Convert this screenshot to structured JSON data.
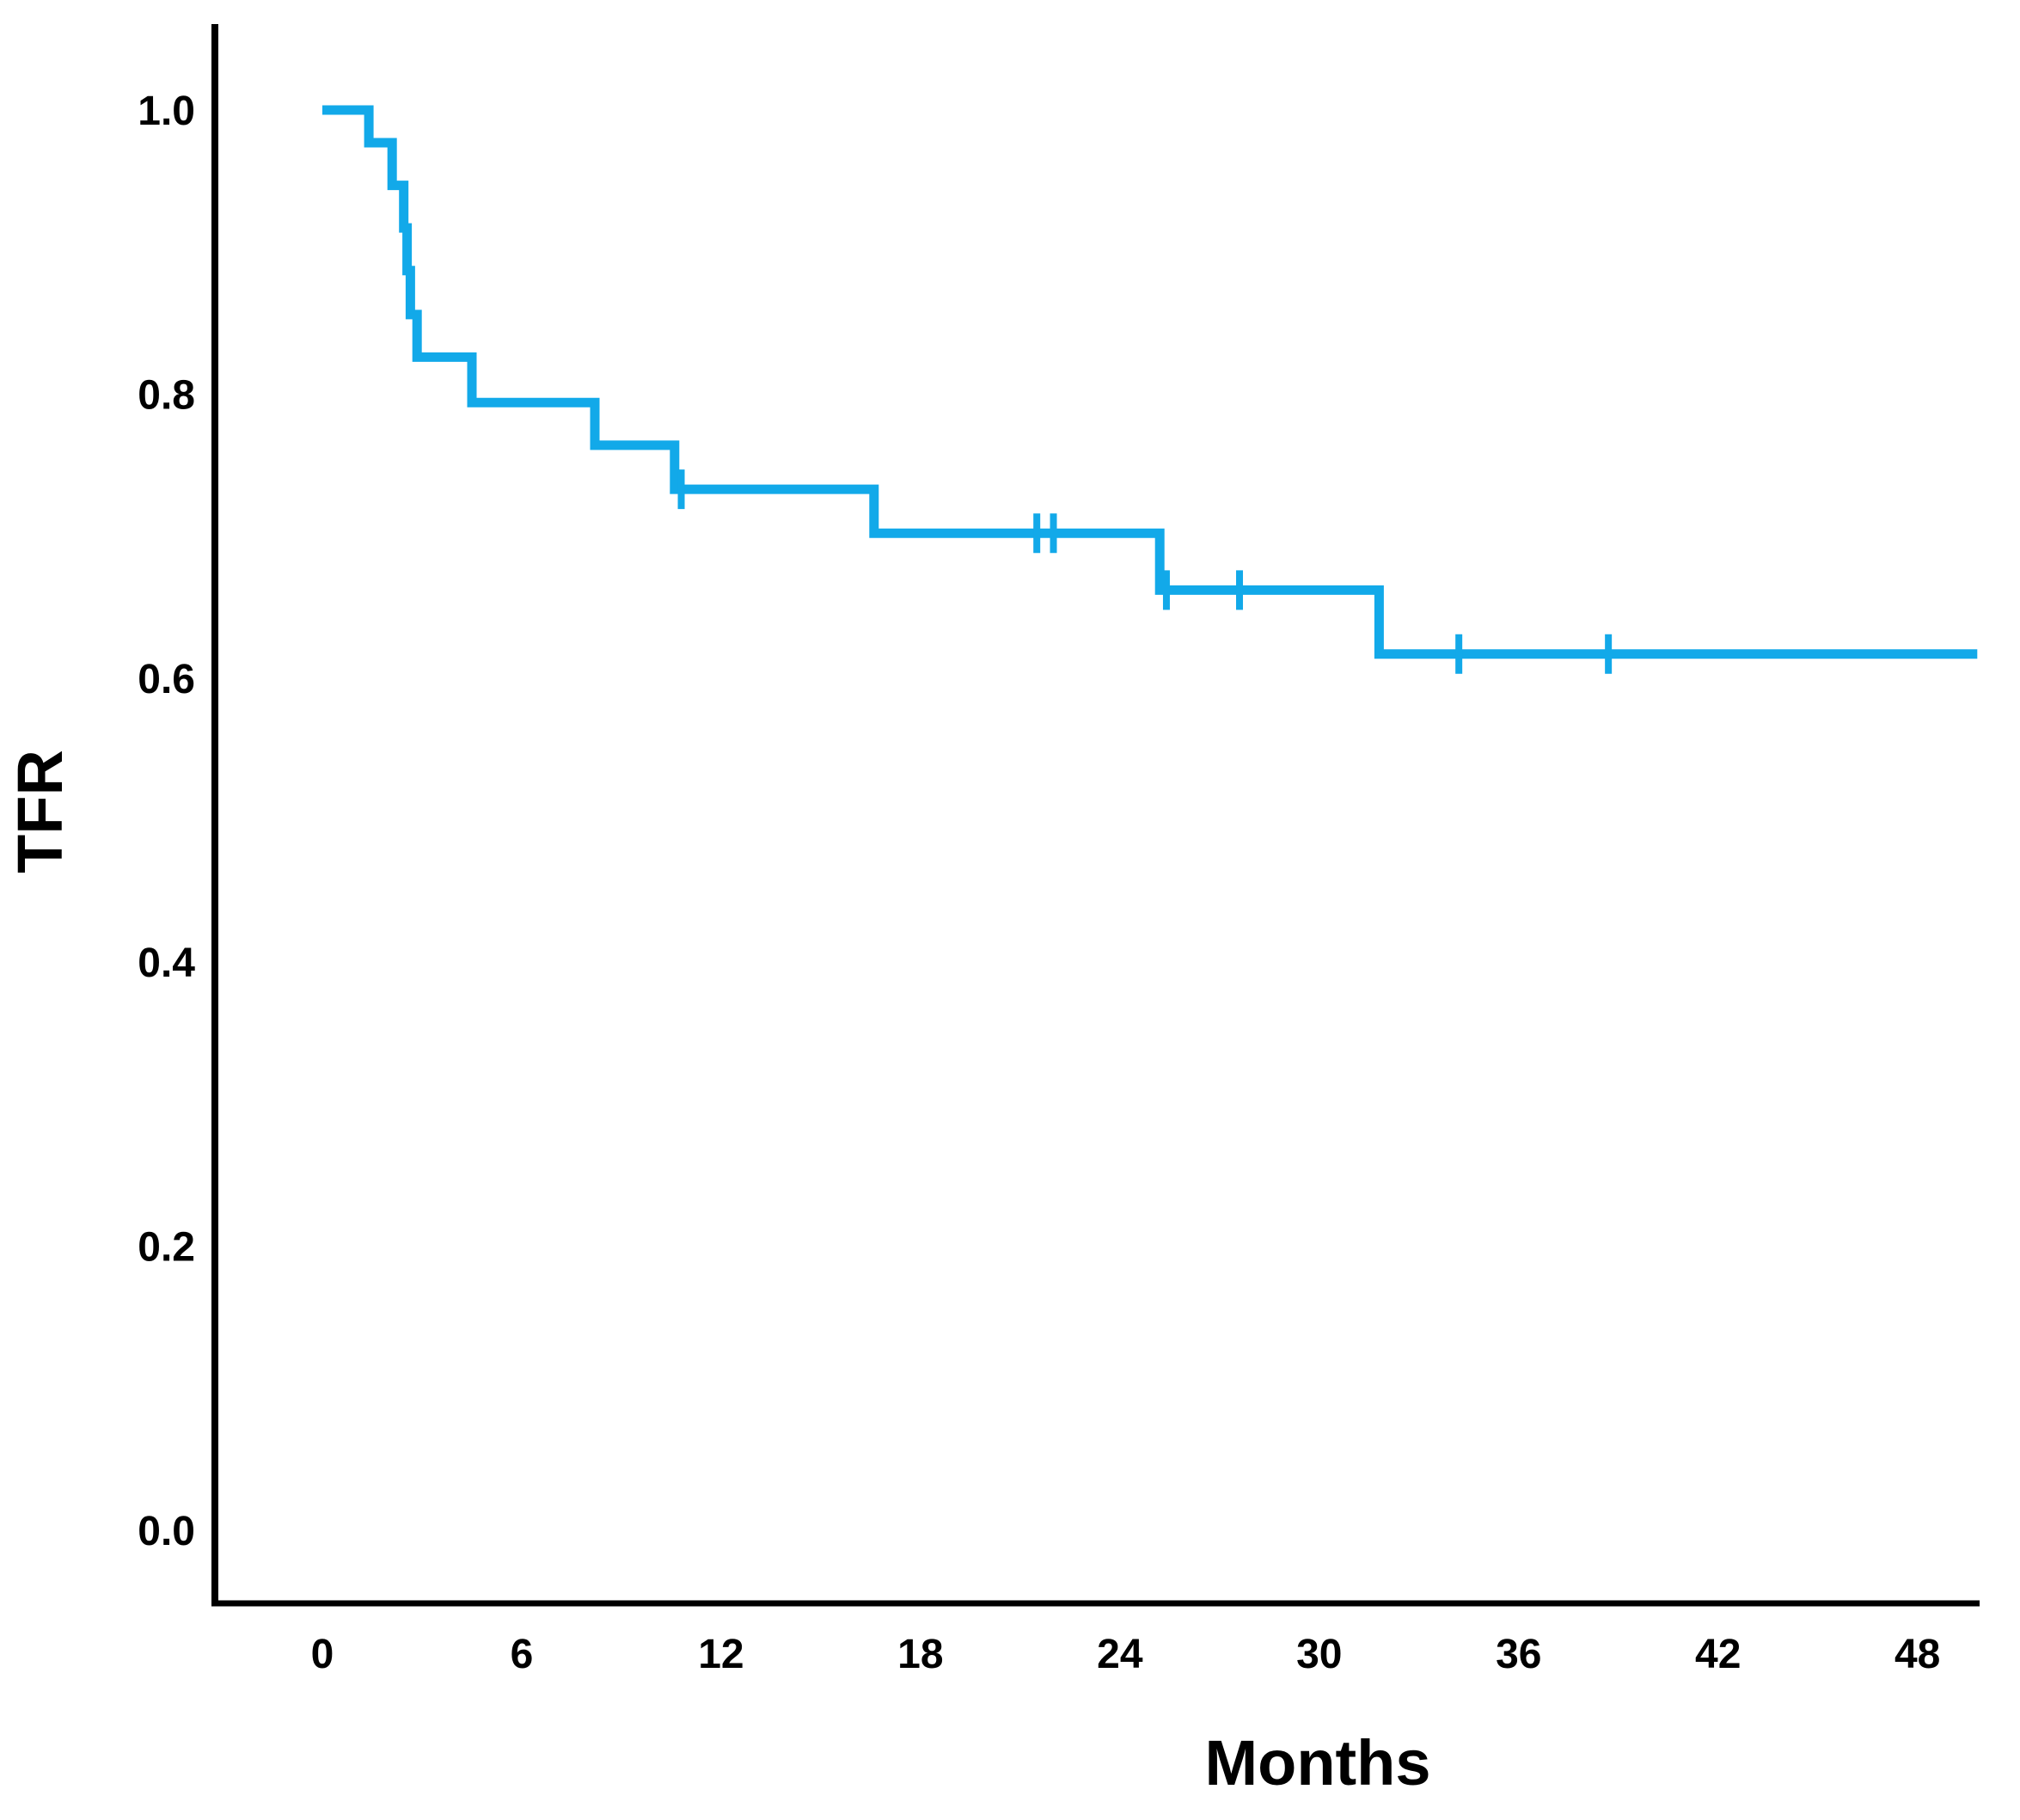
{
  "figure": {
    "background": "#ffffff",
    "axis_color": "#000000",
    "y_axis": {
      "title": "TFR",
      "tick_labels": [
        "1.0",
        "0.8",
        "0.6",
        "0.4",
        "0.2",
        "0.0"
      ],
      "tick_values": [
        1.0,
        0.8,
        0.6,
        0.4,
        0.2,
        0.0
      ]
    },
    "x_axis": {
      "title": "Months",
      "tick_labels": [
        "0",
        "6",
        "12",
        "18",
        "24",
        "30",
        "36",
        "42",
        "48"
      ],
      "tick_values": [
        0,
        6,
        12,
        18,
        24,
        30,
        36,
        42,
        48
      ]
    }
  },
  "chart_data": {
    "type": "line",
    "subtype": "kaplan-meier-step",
    "title": "",
    "xlabel": "Months",
    "ylabel": "TFR",
    "xlim": [
      0,
      50
    ],
    "ylim": [
      0.0,
      1.0
    ],
    "grid": false,
    "legend": "none",
    "series": [
      {
        "name": "TFR",
        "color": "#12A9E9",
        "step_points": [
          [
            0,
            1.0
          ],
          [
            1.4,
            1.0
          ],
          [
            1.4,
            0.977
          ],
          [
            2.1,
            0.977
          ],
          [
            2.1,
            0.947
          ],
          [
            2.45,
            0.947
          ],
          [
            2.45,
            0.917
          ],
          [
            2.55,
            0.917
          ],
          [
            2.55,
            0.887
          ],
          [
            2.65,
            0.887
          ],
          [
            2.65,
            0.856
          ],
          [
            2.85,
            0.856
          ],
          [
            2.85,
            0.826
          ],
          [
            4.5,
            0.826
          ],
          [
            4.5,
            0.794
          ],
          [
            8.2,
            0.794
          ],
          [
            8.2,
            0.764
          ],
          [
            10.6,
            0.764
          ],
          [
            10.6,
            0.733
          ],
          [
            16.6,
            0.733
          ],
          [
            16.6,
            0.702
          ],
          [
            25.2,
            0.702
          ],
          [
            25.2,
            0.662
          ],
          [
            31.8,
            0.662
          ],
          [
            31.8,
            0.617
          ],
          [
            49.8,
            0.617
          ]
        ],
        "censor_marks": [
          [
            10.8,
            0.733
          ],
          [
            21.5,
            0.702
          ],
          [
            22.0,
            0.702
          ],
          [
            25.4,
            0.662
          ],
          [
            27.6,
            0.662
          ],
          [
            34.2,
            0.617
          ],
          [
            38.7,
            0.617
          ]
        ]
      }
    ]
  }
}
